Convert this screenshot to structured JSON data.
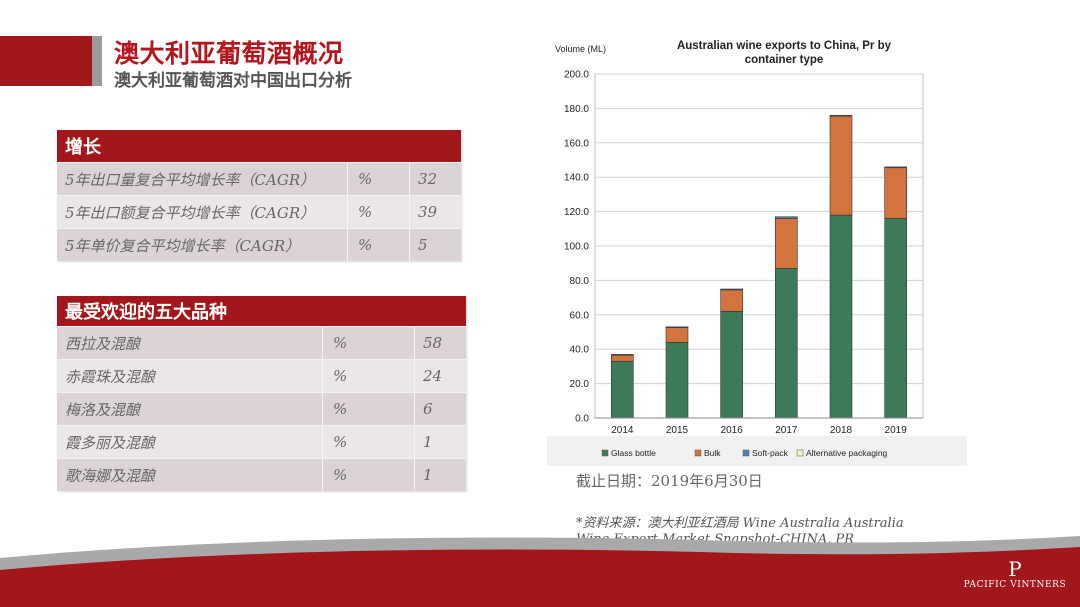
{
  "header": {
    "title": "澳大利亚葡萄酒概况",
    "subtitle": "澳大利亚葡萄酒对中国出口分析"
  },
  "growth_table": {
    "title": "增长",
    "rows": [
      {
        "label": "5年出口量复合平均增长率（CAGR）",
        "unit": "%",
        "value": "32"
      },
      {
        "label": "5年出口额复合平均增长率（CAGR）",
        "unit": "%",
        "value": "39"
      },
      {
        "label": "5年单价复合平均增长率（CAGR）",
        "unit": "%",
        "value": "5"
      }
    ]
  },
  "varieties_table": {
    "title": "最受欢迎的五大品种",
    "rows": [
      {
        "label": "西拉及混酿",
        "unit": "%",
        "value": "58"
      },
      {
        "label": "赤霞珠及混酿",
        "unit": "%",
        "value": "24"
      },
      {
        "label": "梅洛及混酿",
        "unit": "%",
        "value": "6"
      },
      {
        "label": "霞多丽及混酿",
        "unit": "%",
        "value": "1"
      },
      {
        "label": "歌海娜及混酿",
        "unit": "%",
        "value": "1"
      }
    ]
  },
  "chart_data": {
    "type": "bar",
    "stacked": true,
    "title": "Australian wine exports to China, Pr by container type",
    "ylabel": "Volume (ML)",
    "xlabel": "",
    "ylim": [
      0,
      200
    ],
    "yticks": [
      "0.0",
      "20.0",
      "40.0",
      "60.0",
      "80.0",
      "100.0",
      "120.0",
      "140.0",
      "160.0",
      "180.0",
      "200.0"
    ],
    "categories": [
      "2014",
      "2015",
      "2016",
      "2017",
      "2018",
      "2019"
    ],
    "series": [
      {
        "name": "Glass bottle",
        "color": "#3d7a5a",
        "values": [
          33,
          44,
          62,
          87,
          118,
          116
        ]
      },
      {
        "name": "Bulk",
        "color": "#d3733d",
        "values": [
          3.5,
          8.5,
          12.5,
          29,
          57.5,
          29.5
        ]
      },
      {
        "name": "Soft-pack",
        "color": "#4f7fbf",
        "values": [
          0.5,
          0.5,
          0.5,
          1,
          0.5,
          0.5
        ]
      },
      {
        "name": "Alternative packaging",
        "color": "#f2f2bf",
        "values": [
          0,
          0,
          0,
          0,
          0,
          0
        ]
      }
    ],
    "grid": true,
    "legend": "bottom"
  },
  "notes": {
    "date": "截止日期：2019年6月30日",
    "source": "*资料来源：澳大利亚红酒局 Wine Australia Australia Wine Export Market Snapshot-CHINA, PR"
  },
  "logo": {
    "text": "PACIFIC VINTNERS",
    "mark": "P"
  },
  "colors": {
    "brand_red": "#a3171b",
    "wave_grey": "#a9a9a9"
  }
}
